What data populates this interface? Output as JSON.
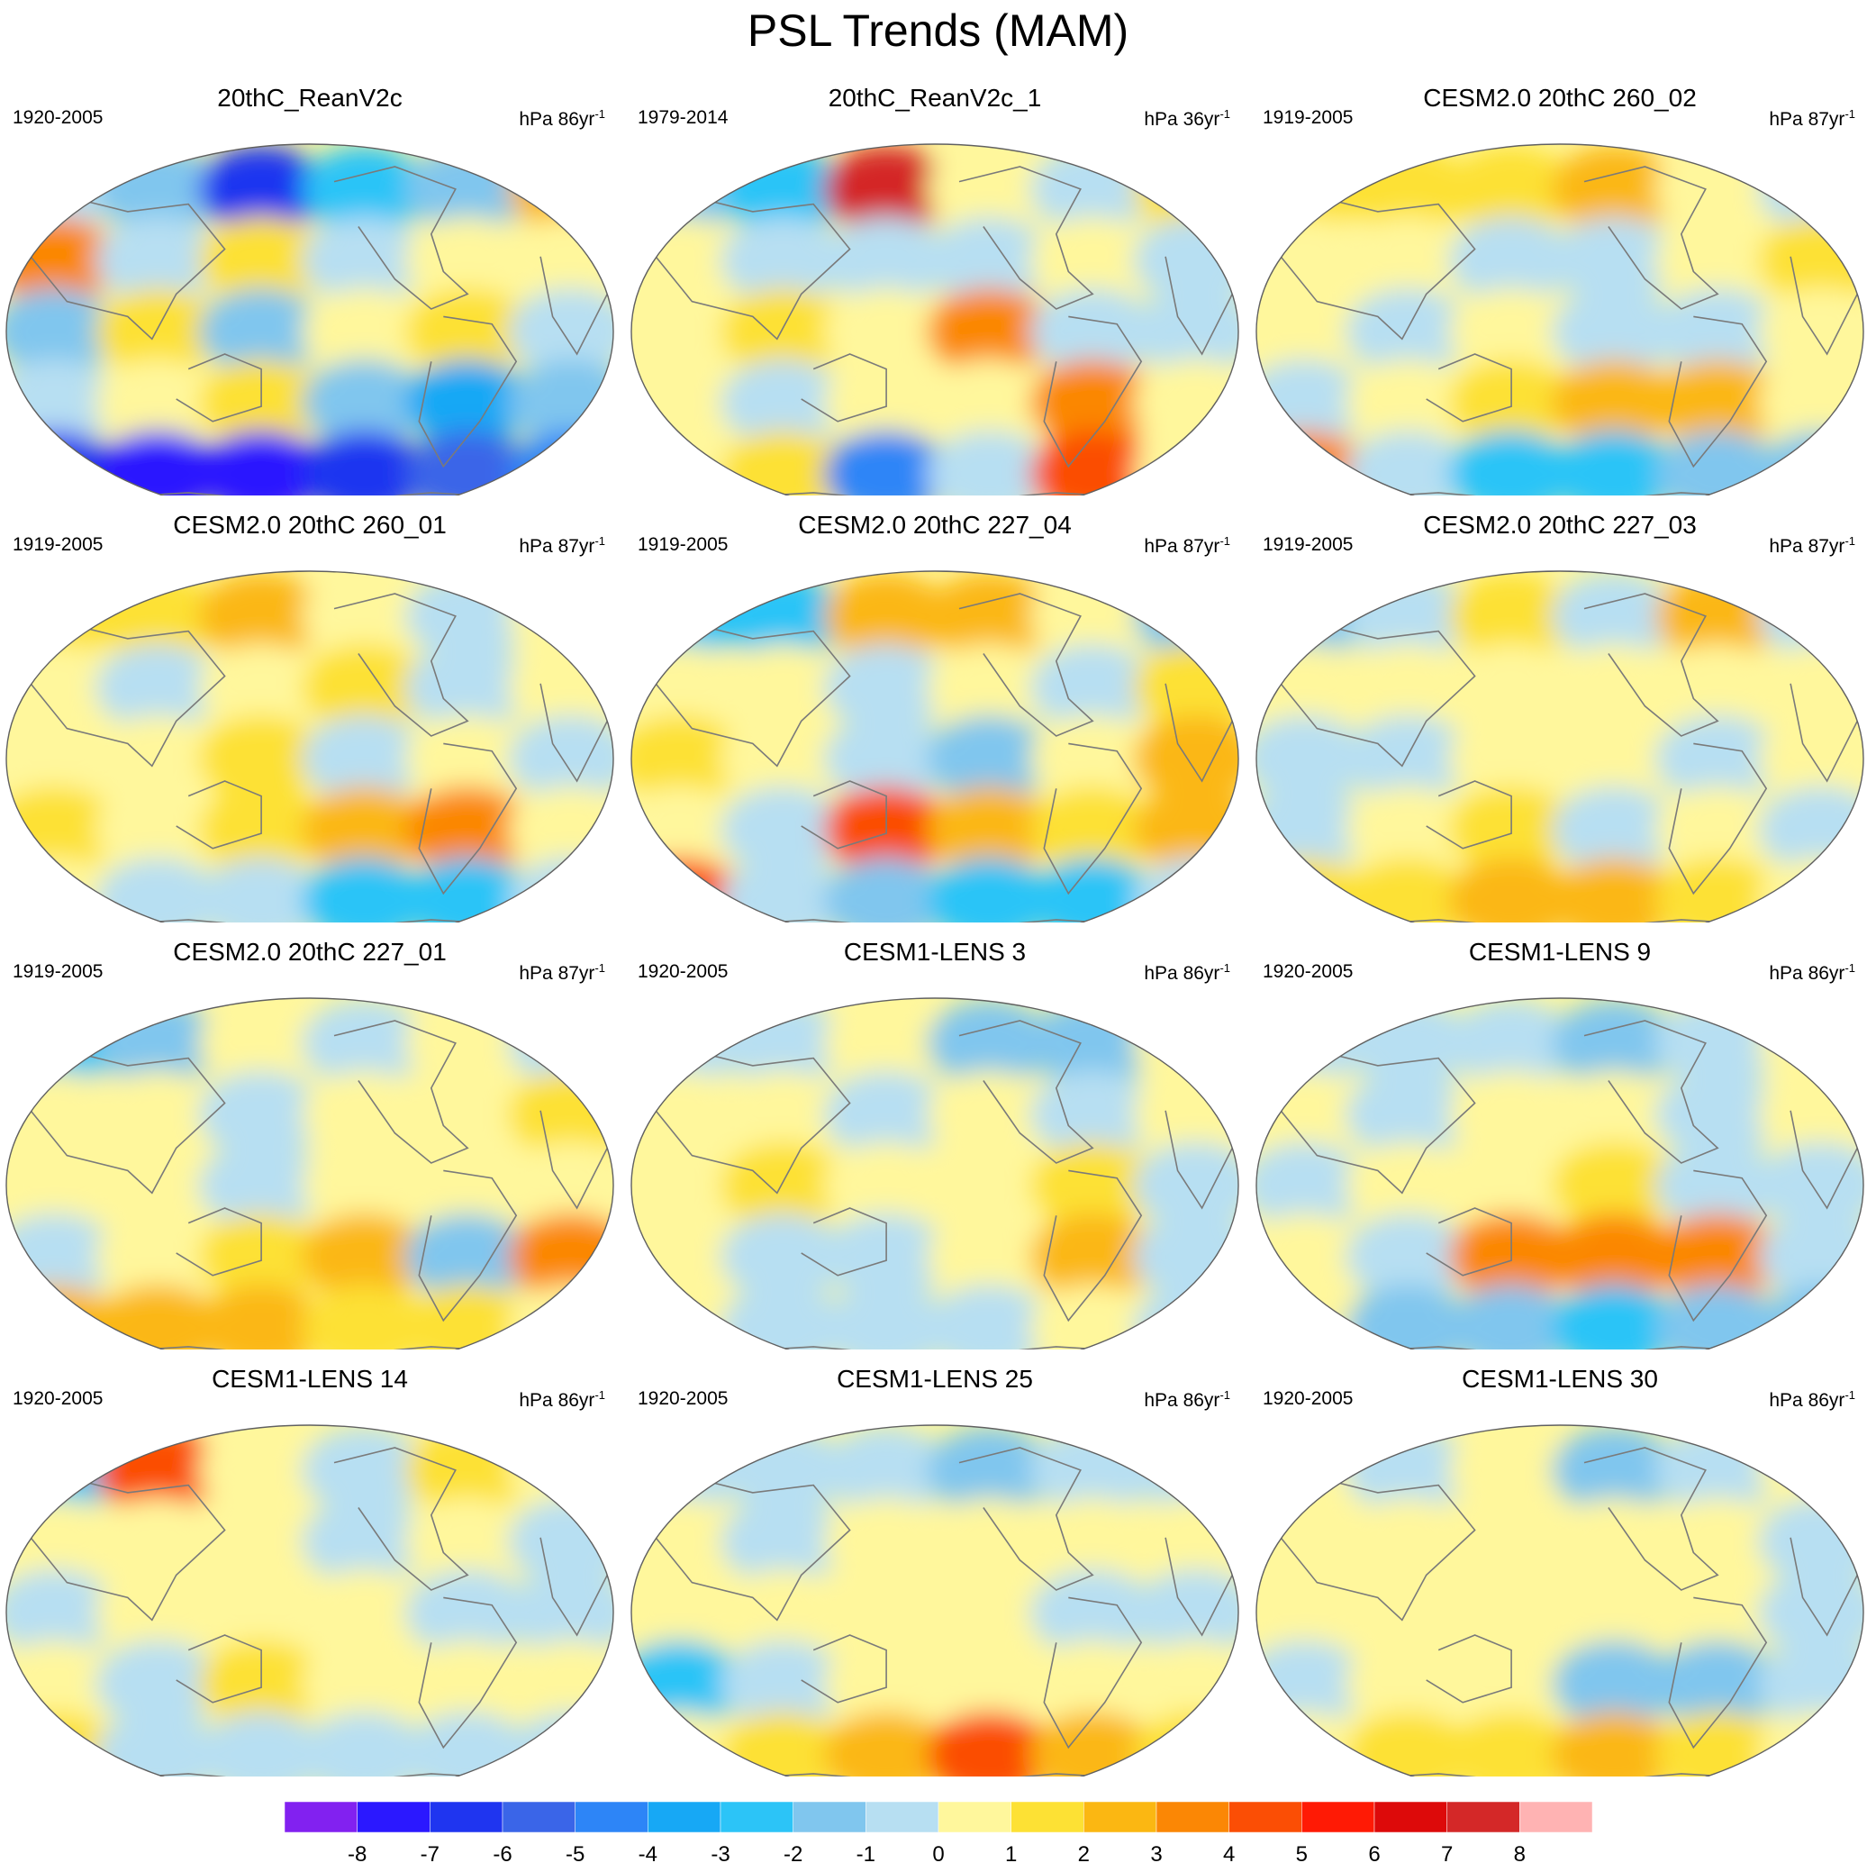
{
  "title": "PSL Trends (MAM)",
  "units_template": "hPa {n}yr",
  "colors": {
    "levels": [
      "#8221f0",
      "#2b18ff",
      "#1f35f0",
      "#3a65e8",
      "#2d85f7",
      "#17a8f5",
      "#2cc4f7",
      "#80c6ee",
      "#b7dff2",
      "#fff79c",
      "#fde134",
      "#fbb712",
      "#fb8705",
      "#fb4e05",
      "#ff1a05",
      "#dd0a0a",
      "#d42828",
      "#ffb3b3"
    ],
    "coast": "#7a7a7a",
    "frame": "#606060"
  },
  "colorbar": {
    "labels": [
      "-8",
      "-7",
      "-6",
      "-5",
      "-4",
      "-3",
      "-2",
      "-1",
      "0",
      "1",
      "2",
      "3",
      "4",
      "5",
      "6",
      "7",
      "8"
    ]
  },
  "panels": [
    {
      "title": "20thC_ReanV2c",
      "period": "1920-2005",
      "units_n": "86",
      "units_sup": "-1",
      "levels": [
        -1,
        -2,
        -7,
        -3,
        -2,
        2,
        3,
        -1,
        1,
        -1,
        0,
        0,
        -2,
        1,
        -2,
        0,
        1,
        -1,
        -1,
        0,
        1,
        -2,
        -4,
        -2,
        -7,
        -8,
        -8,
        -7,
        -6,
        -5
      ]
    },
    {
      "title": "20thC_ReanV2c_1",
      "period": "1979-2014",
      "units_n": "36",
      "units_sup": "-1",
      "levels": [
        -2,
        -3,
        7,
        0,
        -1,
        1,
        0,
        -1,
        -1,
        -1,
        0,
        -1,
        0,
        1,
        0,
        3,
        -1,
        -1,
        0,
        -1,
        0,
        0,
        3,
        0,
        0,
        1,
        -5,
        -1,
        4,
        0
      ]
    },
    {
      "title": "CESM2.0 20thC 260_02",
      "period": "1919-2005",
      "units_n": "87",
      "units_sup": "-1",
      "levels": [
        1,
        1,
        1,
        2,
        0,
        -1,
        0,
        0,
        -1,
        -1,
        0,
        1,
        0,
        -1,
        0,
        -1,
        -1,
        0,
        -1,
        0,
        1,
        2,
        2,
        0,
        3,
        -1,
        -3,
        -3,
        -2,
        -2
      ]
    },
    {
      "title": "CESM2.0 20thC 260_01",
      "period": "1919-2005",
      "units_n": "87",
      "units_sup": "-1",
      "levels": [
        1,
        1,
        2,
        0,
        -1,
        0,
        0,
        -1,
        0,
        1,
        -1,
        0,
        0,
        0,
        1,
        -1,
        0,
        -1,
        1,
        0,
        1,
        2,
        3,
        0,
        0,
        -1,
        -1,
        -3,
        -3,
        -1
      ]
    },
    {
      "title": "CESM2.0 20thC 227_04",
      "period": "1919-2005",
      "units_n": "87",
      "units_sup": "-1",
      "levels": [
        -3,
        -3,
        2,
        2,
        0,
        -2,
        0,
        0,
        -1,
        0,
        -1,
        1,
        1,
        0,
        -1,
        -2,
        0,
        2,
        0,
        -1,
        4,
        2,
        1,
        2,
        4,
        -1,
        -2,
        -3,
        -3,
        -1
      ]
    },
    {
      "title": "CESM2.0 20thC 227_03",
      "period": "1919-2005",
      "units_n": "87",
      "units_sup": "-1",
      "levels": [
        -2,
        -1,
        1,
        -1,
        2,
        -1,
        0,
        0,
        0,
        0,
        0,
        0,
        -1,
        -1,
        0,
        0,
        -1,
        0,
        -1,
        0,
        1,
        -1,
        0,
        -1,
        1,
        1,
        2,
        2,
        1,
        0
      ]
    },
    {
      "title": "CESM2.0 20thC 227_01",
      "period": "1919-2005",
      "units_n": "87",
      "units_sup": "-1",
      "levels": [
        -3,
        -2,
        0,
        -1,
        0,
        -1,
        0,
        0,
        -1,
        0,
        0,
        1,
        0,
        0,
        -1,
        0,
        0,
        0,
        -1,
        0,
        1,
        2,
        -2,
        3,
        2,
        2,
        2,
        1,
        1,
        0
      ]
    },
    {
      "title": "CESM1-LENS 3",
      "period": "1920-2005",
      "units_n": "86",
      "units_sup": "-1",
      "levels": [
        -1,
        -1,
        0,
        -2,
        -2,
        0,
        0,
        0,
        -1,
        0,
        -1,
        0,
        0,
        1,
        0,
        0,
        1,
        -1,
        0,
        -1,
        -1,
        0,
        2,
        -1,
        0,
        -1,
        -1,
        -1,
        0,
        -1
      ]
    },
    {
      "title": "CESM1-LENS 9",
      "period": "1920-2005",
      "units_n": "86",
      "units_sup": "-1",
      "levels": [
        -1,
        -1,
        -1,
        -2,
        -1,
        0,
        0,
        -1,
        0,
        0,
        -1,
        0,
        -1,
        0,
        0,
        1,
        -1,
        -1,
        0,
        -1,
        3,
        3,
        3,
        -1,
        0,
        -2,
        -2,
        -3,
        -2,
        -2
      ]
    },
    {
      "title": "CESM1-LENS 14",
      "period": "1920-2005",
      "units_n": "86",
      "units_sup": "-1",
      "levels": [
        -3,
        4,
        0,
        -1,
        1,
        0,
        0,
        0,
        0,
        -1,
        0,
        -1,
        -1,
        0,
        0,
        0,
        -1,
        -1,
        0,
        -1,
        1,
        0,
        0,
        0,
        1,
        -1,
        -1,
        -1,
        -1,
        -1
      ]
    },
    {
      "title": "CESM1-LENS 25",
      "period": "1920-2005",
      "units_n": "86",
      "units_sup": "-1",
      "levels": [
        -1,
        -1,
        -1,
        -2,
        -1,
        -1,
        0,
        -1,
        0,
        0,
        0,
        0,
        0,
        0,
        0,
        0,
        -1,
        -1,
        -3,
        -1,
        0,
        0,
        0,
        0,
        0,
        1,
        2,
        4,
        2,
        1
      ]
    },
    {
      "title": "CESM1-LENS 30",
      "period": "1920-2005",
      "units_n": "86",
      "units_sup": "-1",
      "levels": [
        0,
        -1,
        0,
        -2,
        -1,
        0,
        0,
        0,
        0,
        0,
        0,
        -1,
        0,
        0,
        0,
        0,
        0,
        -1,
        -1,
        0,
        0,
        -2,
        -2,
        -1,
        0,
        1,
        1,
        2,
        1,
        0
      ]
    }
  ]
}
